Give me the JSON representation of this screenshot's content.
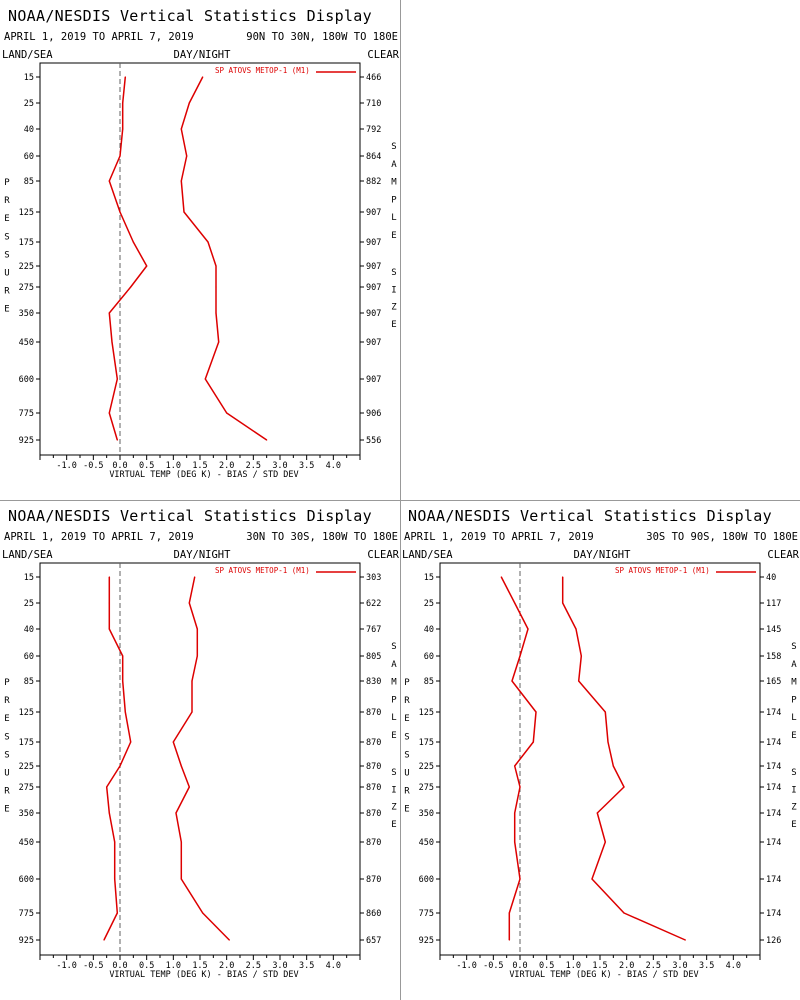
{
  "colors": {
    "series": "#dd0000",
    "axis": "#000000",
    "zero_line": "#606060",
    "divider": "#999999"
  },
  "common": {
    "title": "NOAA/NESDIS Vertical Statistics Display",
    "date_range": "APRIL 1, 2019 TO APRIL 7, 2019",
    "land_sea": "LAND/SEA",
    "day_night": "DAY/NIGHT",
    "clear": "CLEAR",
    "xlabel": "VIRTUAL TEMP (DEG K) - BIAS / STD DEV",
    "ylabel_letters": [
      "P",
      "R",
      "E",
      "S",
      "S",
      "U",
      "R",
      "E"
    ],
    "sample_letters": [
      "S",
      "A",
      "M",
      "P",
      "L",
      "E"
    ],
    "size_letters": [
      "S",
      "I",
      "Z",
      "E"
    ],
    "legend": "SP ATOVS METOP-1 (M1)",
    "x_ticks": [
      "-1.0",
      "-0.5",
      "0.0",
      "0.5",
      "1.0",
      "1.5",
      "2.0",
      "2.5",
      "3.0",
      "3.5",
      "4.0"
    ],
    "pressure_levels": [
      "15",
      "25",
      "40",
      "60",
      "85",
      "125",
      "175",
      "225",
      "275",
      "350",
      "450",
      "600",
      "775",
      "925"
    ]
  },
  "chart_data": [
    {
      "type": "line",
      "region": "90N TO 30N, 180W TO 180E",
      "title": "NOAA/NESDIS Vertical Statistics Display",
      "xlabel": "VIRTUAL TEMP (DEG K) - BIAS / STD DEV",
      "ylabel": "PRESSURE",
      "xlim": [
        -1.5,
        4.5
      ],
      "pressure": [
        15,
        25,
        40,
        60,
        85,
        125,
        175,
        225,
        275,
        350,
        450,
        600,
        775,
        925
      ],
      "sample_size": [
        "466",
        "710",
        "792",
        "864",
        "882",
        "907",
        "907",
        "907",
        "907",
        "907",
        "907",
        "907",
        "906",
        "556"
      ],
      "series": [
        {
          "name": "bias",
          "values": [
            0.1,
            0.05,
            0.05,
            0.0,
            -0.2,
            0.0,
            0.25,
            0.5,
            0.2,
            -0.2,
            -0.15,
            -0.05,
            -0.2,
            -0.05
          ]
        },
        {
          "name": "std_dev",
          "values": [
            1.55,
            1.3,
            1.15,
            1.25,
            1.15,
            1.2,
            1.65,
            1.8,
            1.8,
            1.8,
            1.85,
            1.6,
            2.0,
            2.75
          ]
        }
      ]
    },
    {
      "type": "line",
      "region": "30N TO 30S, 180W TO 180E",
      "title": "NOAA/NESDIS Vertical Statistics Display",
      "xlabel": "VIRTUAL TEMP (DEG K) - BIAS / STD DEV",
      "ylabel": "PRESSURE",
      "xlim": [
        -1.5,
        4.5
      ],
      "pressure": [
        15,
        25,
        40,
        60,
        85,
        125,
        175,
        225,
        275,
        350,
        450,
        600,
        775,
        925
      ],
      "sample_size": [
        "303",
        "622",
        "767",
        "805",
        "830",
        "870",
        "870",
        "870",
        "870",
        "870",
        "870",
        "870",
        "860",
        "657"
      ],
      "series": [
        {
          "name": "bias",
          "values": [
            -0.2,
            -0.2,
            -0.2,
            0.05,
            0.05,
            0.1,
            0.2,
            0.0,
            -0.25,
            -0.2,
            -0.1,
            -0.1,
            -0.05,
            -0.3
          ]
        },
        {
          "name": "std_dev",
          "values": [
            1.4,
            1.3,
            1.45,
            1.45,
            1.35,
            1.35,
            1.0,
            1.15,
            1.3,
            1.05,
            1.15,
            1.15,
            1.55,
            2.05
          ]
        }
      ]
    },
    {
      "type": "line",
      "region": "30S TO 90S, 180W TO 180E",
      "title": "NOAA/NESDIS Vertical Statistics Display",
      "xlabel": "VIRTUAL TEMP (DEG K) - BIAS / STD DEV",
      "ylabel": "PRESSURE",
      "xlim": [
        -1.5,
        4.5
      ],
      "pressure": [
        15,
        25,
        40,
        60,
        85,
        125,
        175,
        225,
        275,
        350,
        450,
        600,
        775,
        925
      ],
      "sample_size": [
        "40",
        "117",
        "145",
        "158",
        "165",
        "174",
        "174",
        "174",
        "174",
        "174",
        "174",
        "174",
        "174",
        "126"
      ],
      "series": [
        {
          "name": "bias",
          "values": [
            -0.35,
            -0.1,
            0.15,
            0.0,
            -0.15,
            0.3,
            0.25,
            -0.1,
            0.0,
            -0.1,
            -0.1,
            0.0,
            -0.2,
            -0.2
          ]
        },
        {
          "name": "std_dev",
          "values": [
            0.8,
            0.8,
            1.05,
            1.15,
            1.1,
            1.6,
            1.65,
            1.75,
            1.95,
            1.45,
            1.6,
            1.35,
            1.95,
            3.1
          ]
        }
      ]
    }
  ]
}
